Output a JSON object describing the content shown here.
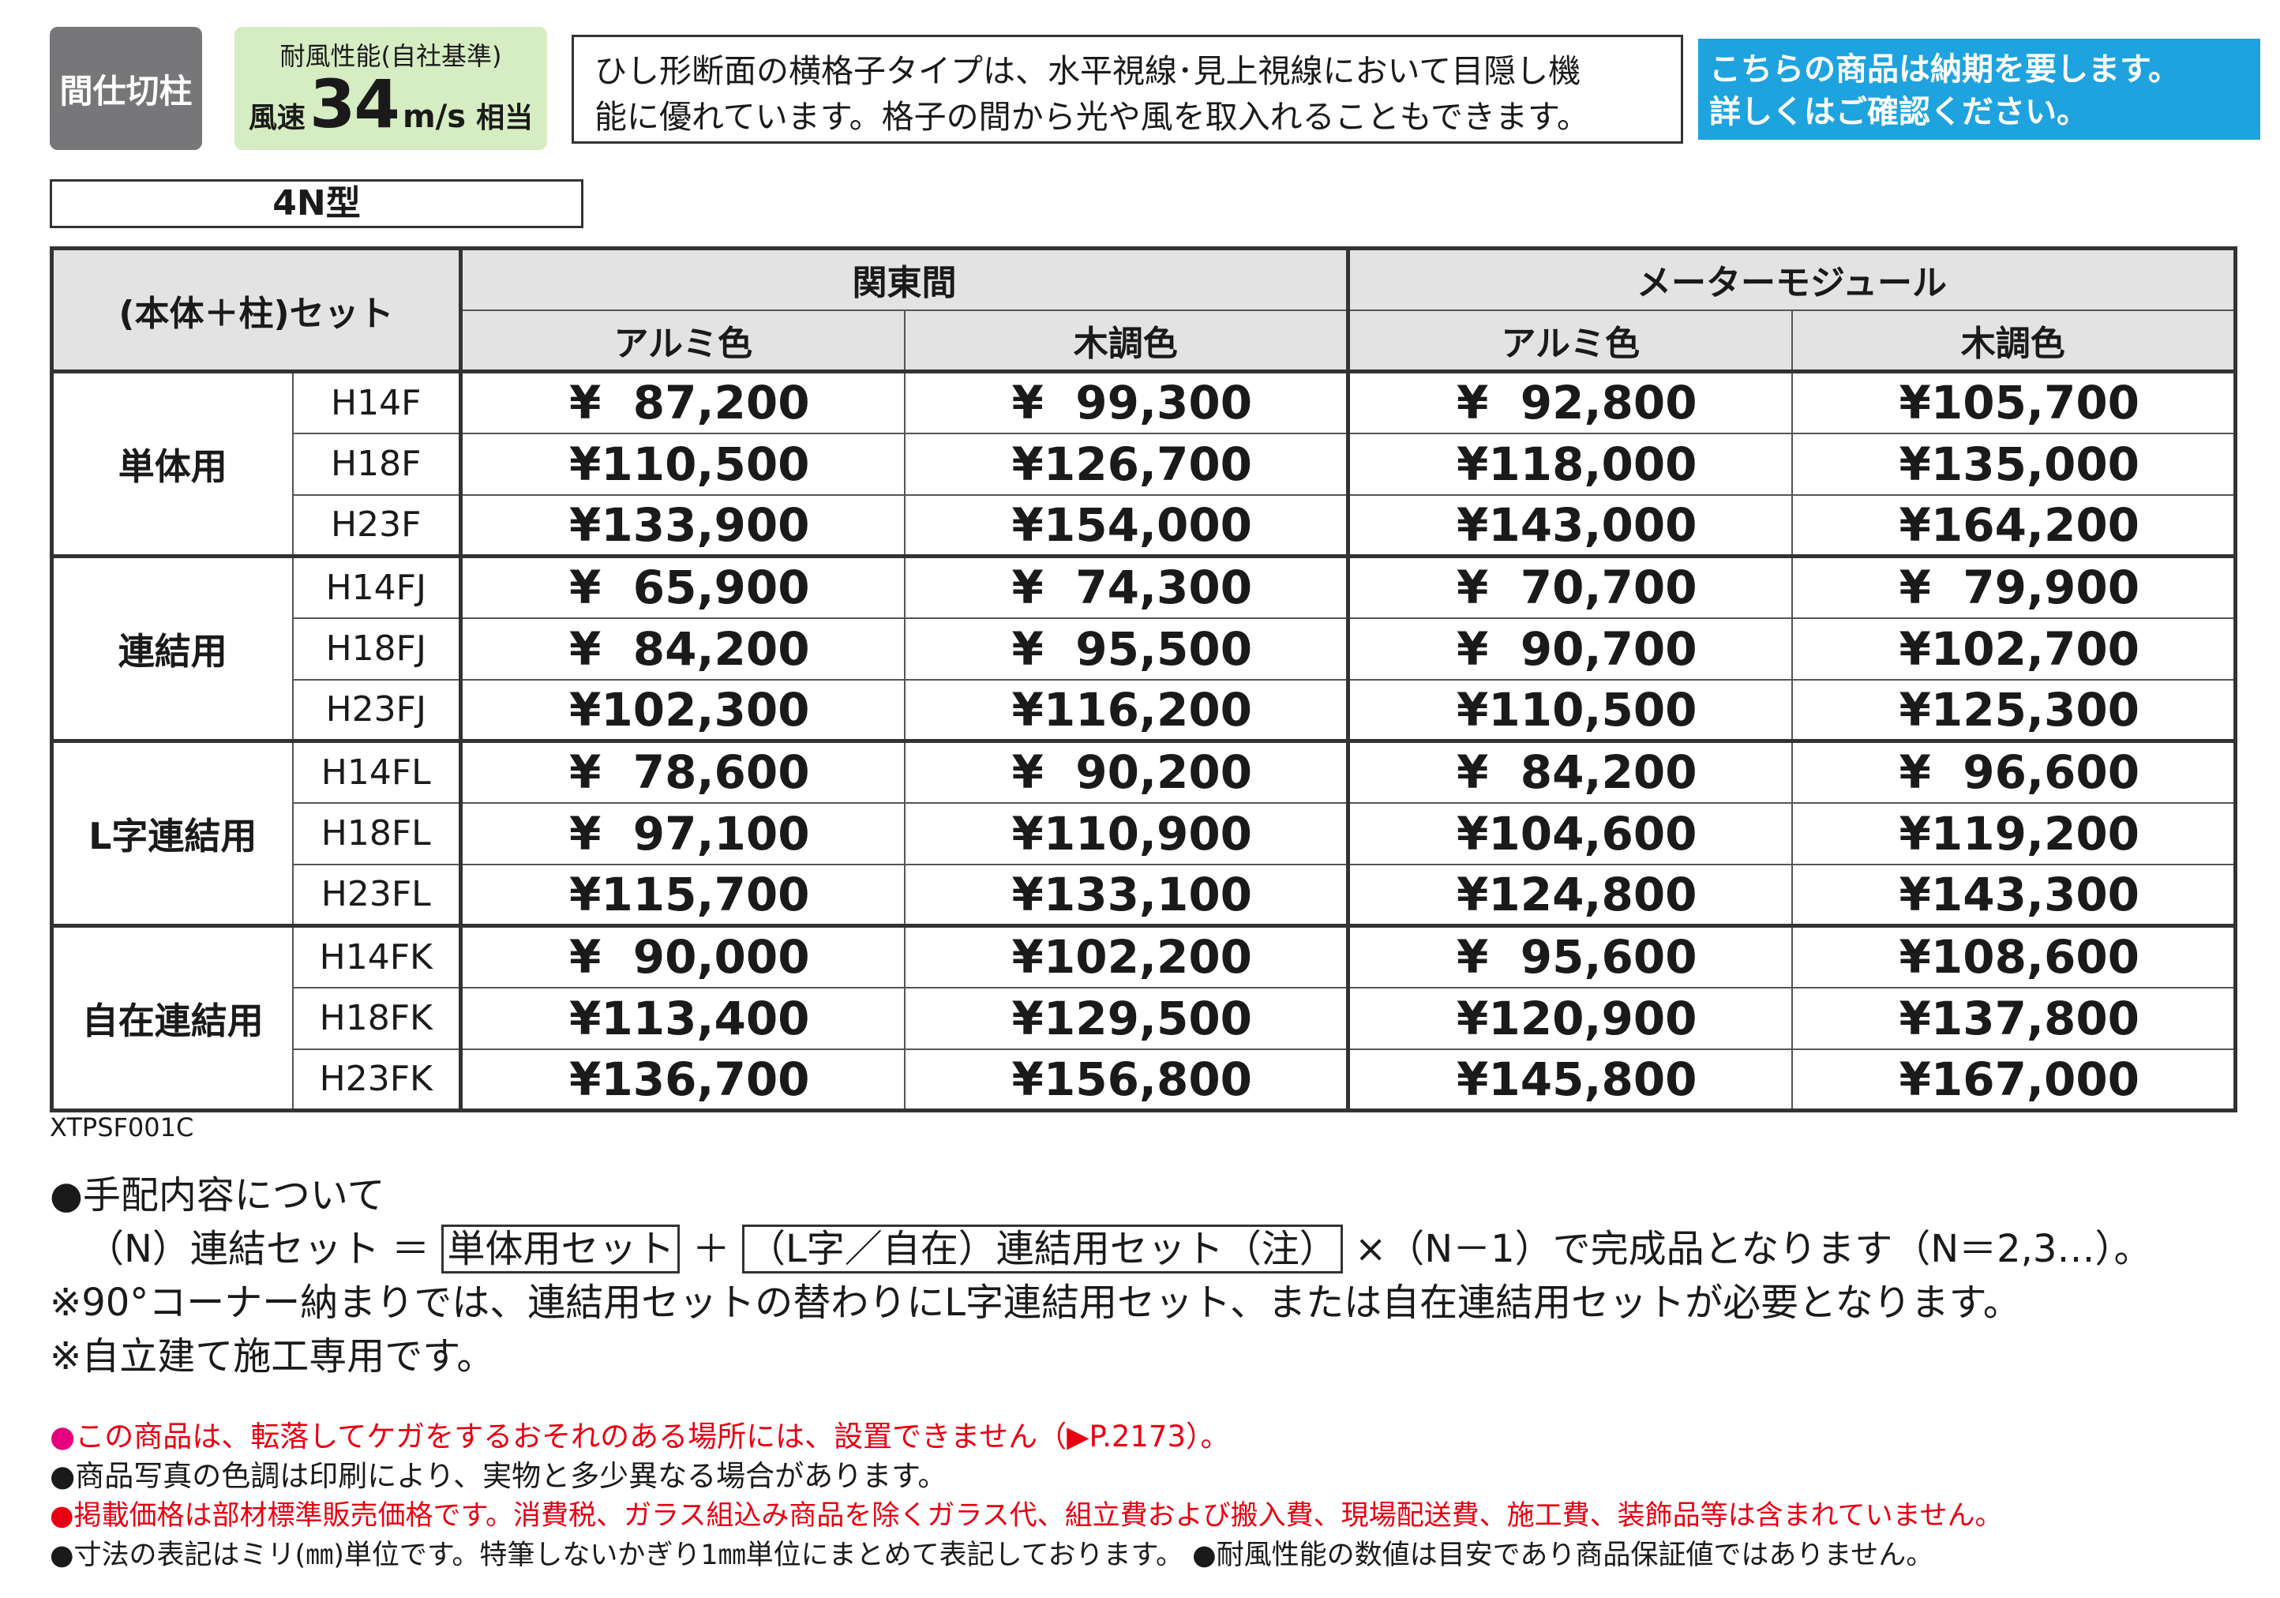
{
  "badges": {
    "category": "間仕切柱",
    "wind_title": "耐風性能(自社基準)",
    "wind_label": "風速",
    "wind_value": "34",
    "wind_unit": "m/s",
    "wind_suffix": "相当"
  },
  "description": [
    "ひし形断面の横格子タイプは、水平視線･見上視線において目隠し機",
    "能に優れています。格子の間から光や風を取入れることもできます。"
  ],
  "notice": [
    "こちらの商品は納期を要します。",
    "詳しくはご確認ください。"
  ],
  "type_label": "4N型",
  "table": {
    "set_header": "(本体＋柱)セット",
    "region_headers": [
      "関東間",
      "メーターモジュール"
    ],
    "color_headers": [
      "アルミ色",
      "木調色",
      "アルミ色",
      "木調色"
    ],
    "groups": [
      {
        "name": "単体用",
        "rows": [
          {
            "model": "H14F",
            "prices": [
              "¥  87,200",
              "¥  99,300",
              "¥  92,800",
              "¥105,700"
            ]
          },
          {
            "model": "H18F",
            "prices": [
              "¥110,500",
              "¥126,700",
              "¥118,000",
              "¥135,000"
            ]
          },
          {
            "model": "H23F",
            "prices": [
              "¥133,900",
              "¥154,000",
              "¥143,000",
              "¥164,200"
            ]
          }
        ]
      },
      {
        "name": "連結用",
        "rows": [
          {
            "model": "H14FJ",
            "prices": [
              "¥  65,900",
              "¥  74,300",
              "¥  70,700",
              "¥  79,900"
            ]
          },
          {
            "model": "H18FJ",
            "prices": [
              "¥  84,200",
              "¥  95,500",
              "¥  90,700",
              "¥102,700"
            ]
          },
          {
            "model": "H23FJ",
            "prices": [
              "¥102,300",
              "¥116,200",
              "¥110,500",
              "¥125,300"
            ]
          }
        ]
      },
      {
        "name": "L字連結用",
        "rows": [
          {
            "model": "H14FL",
            "prices": [
              "¥  78,600",
              "¥  90,200",
              "¥  84,200",
              "¥  96,600"
            ]
          },
          {
            "model": "H18FL",
            "prices": [
              "¥  97,100",
              "¥110,900",
              "¥104,600",
              "¥119,200"
            ]
          },
          {
            "model": "H23FL",
            "prices": [
              "¥115,700",
              "¥133,100",
              "¥124,800",
              "¥143,300"
            ]
          }
        ]
      },
      {
        "name": "自在連結用",
        "rows": [
          {
            "model": "H14FK",
            "prices": [
              "¥  90,000",
              "¥102,200",
              "¥  95,600",
              "¥108,600"
            ]
          },
          {
            "model": "H18FK",
            "prices": [
              "¥113,400",
              "¥129,500",
              "¥120,900",
              "¥137,800"
            ]
          },
          {
            "model": "H23FK",
            "prices": [
              "¥136,700",
              "¥156,800",
              "¥145,800",
              "¥167,000"
            ]
          }
        ]
      }
    ]
  },
  "code": "XTPSF001C",
  "order_notes": {
    "heading": "●手配内容について",
    "formula_prefix": "（N）連結セット ＝ ",
    "box1": "単体用セット",
    "plus": " ＋ ",
    "box2": "（L字／自在）連結用セット（注）",
    "formula_suffix": " ×（N－1）で完成品となります（N＝2,3…）。",
    "note1": "※90°コーナー納まりでは、連結用セットの替わりにL字連結用セット、または自在連結用セットが必要となります。",
    "note2": "※自立建て施工専用です。"
  },
  "footer": {
    "line1_bullet": "●",
    "line1": "この商品は、転落してケガをするおそれのある場所には、設置できません（▶P.2173）。",
    "line2": "●商品写真の色調は印刷により、実物と多少異なる場合があります。",
    "line3_bullet": "●",
    "line3": "掲載価格は部材標準販売価格です。消費税、ガラス組込み商品を除くガラス代、組立費および搬入費、現場配送費、施工費、装飾品等は含まれていません。",
    "line4": "●寸法の表記はミリ(㎜)単位です。特筆しないかぎり1㎜単位にまとめて表記しております。 ●耐風性能の数値は目安であり商品保証値ではありません。"
  }
}
